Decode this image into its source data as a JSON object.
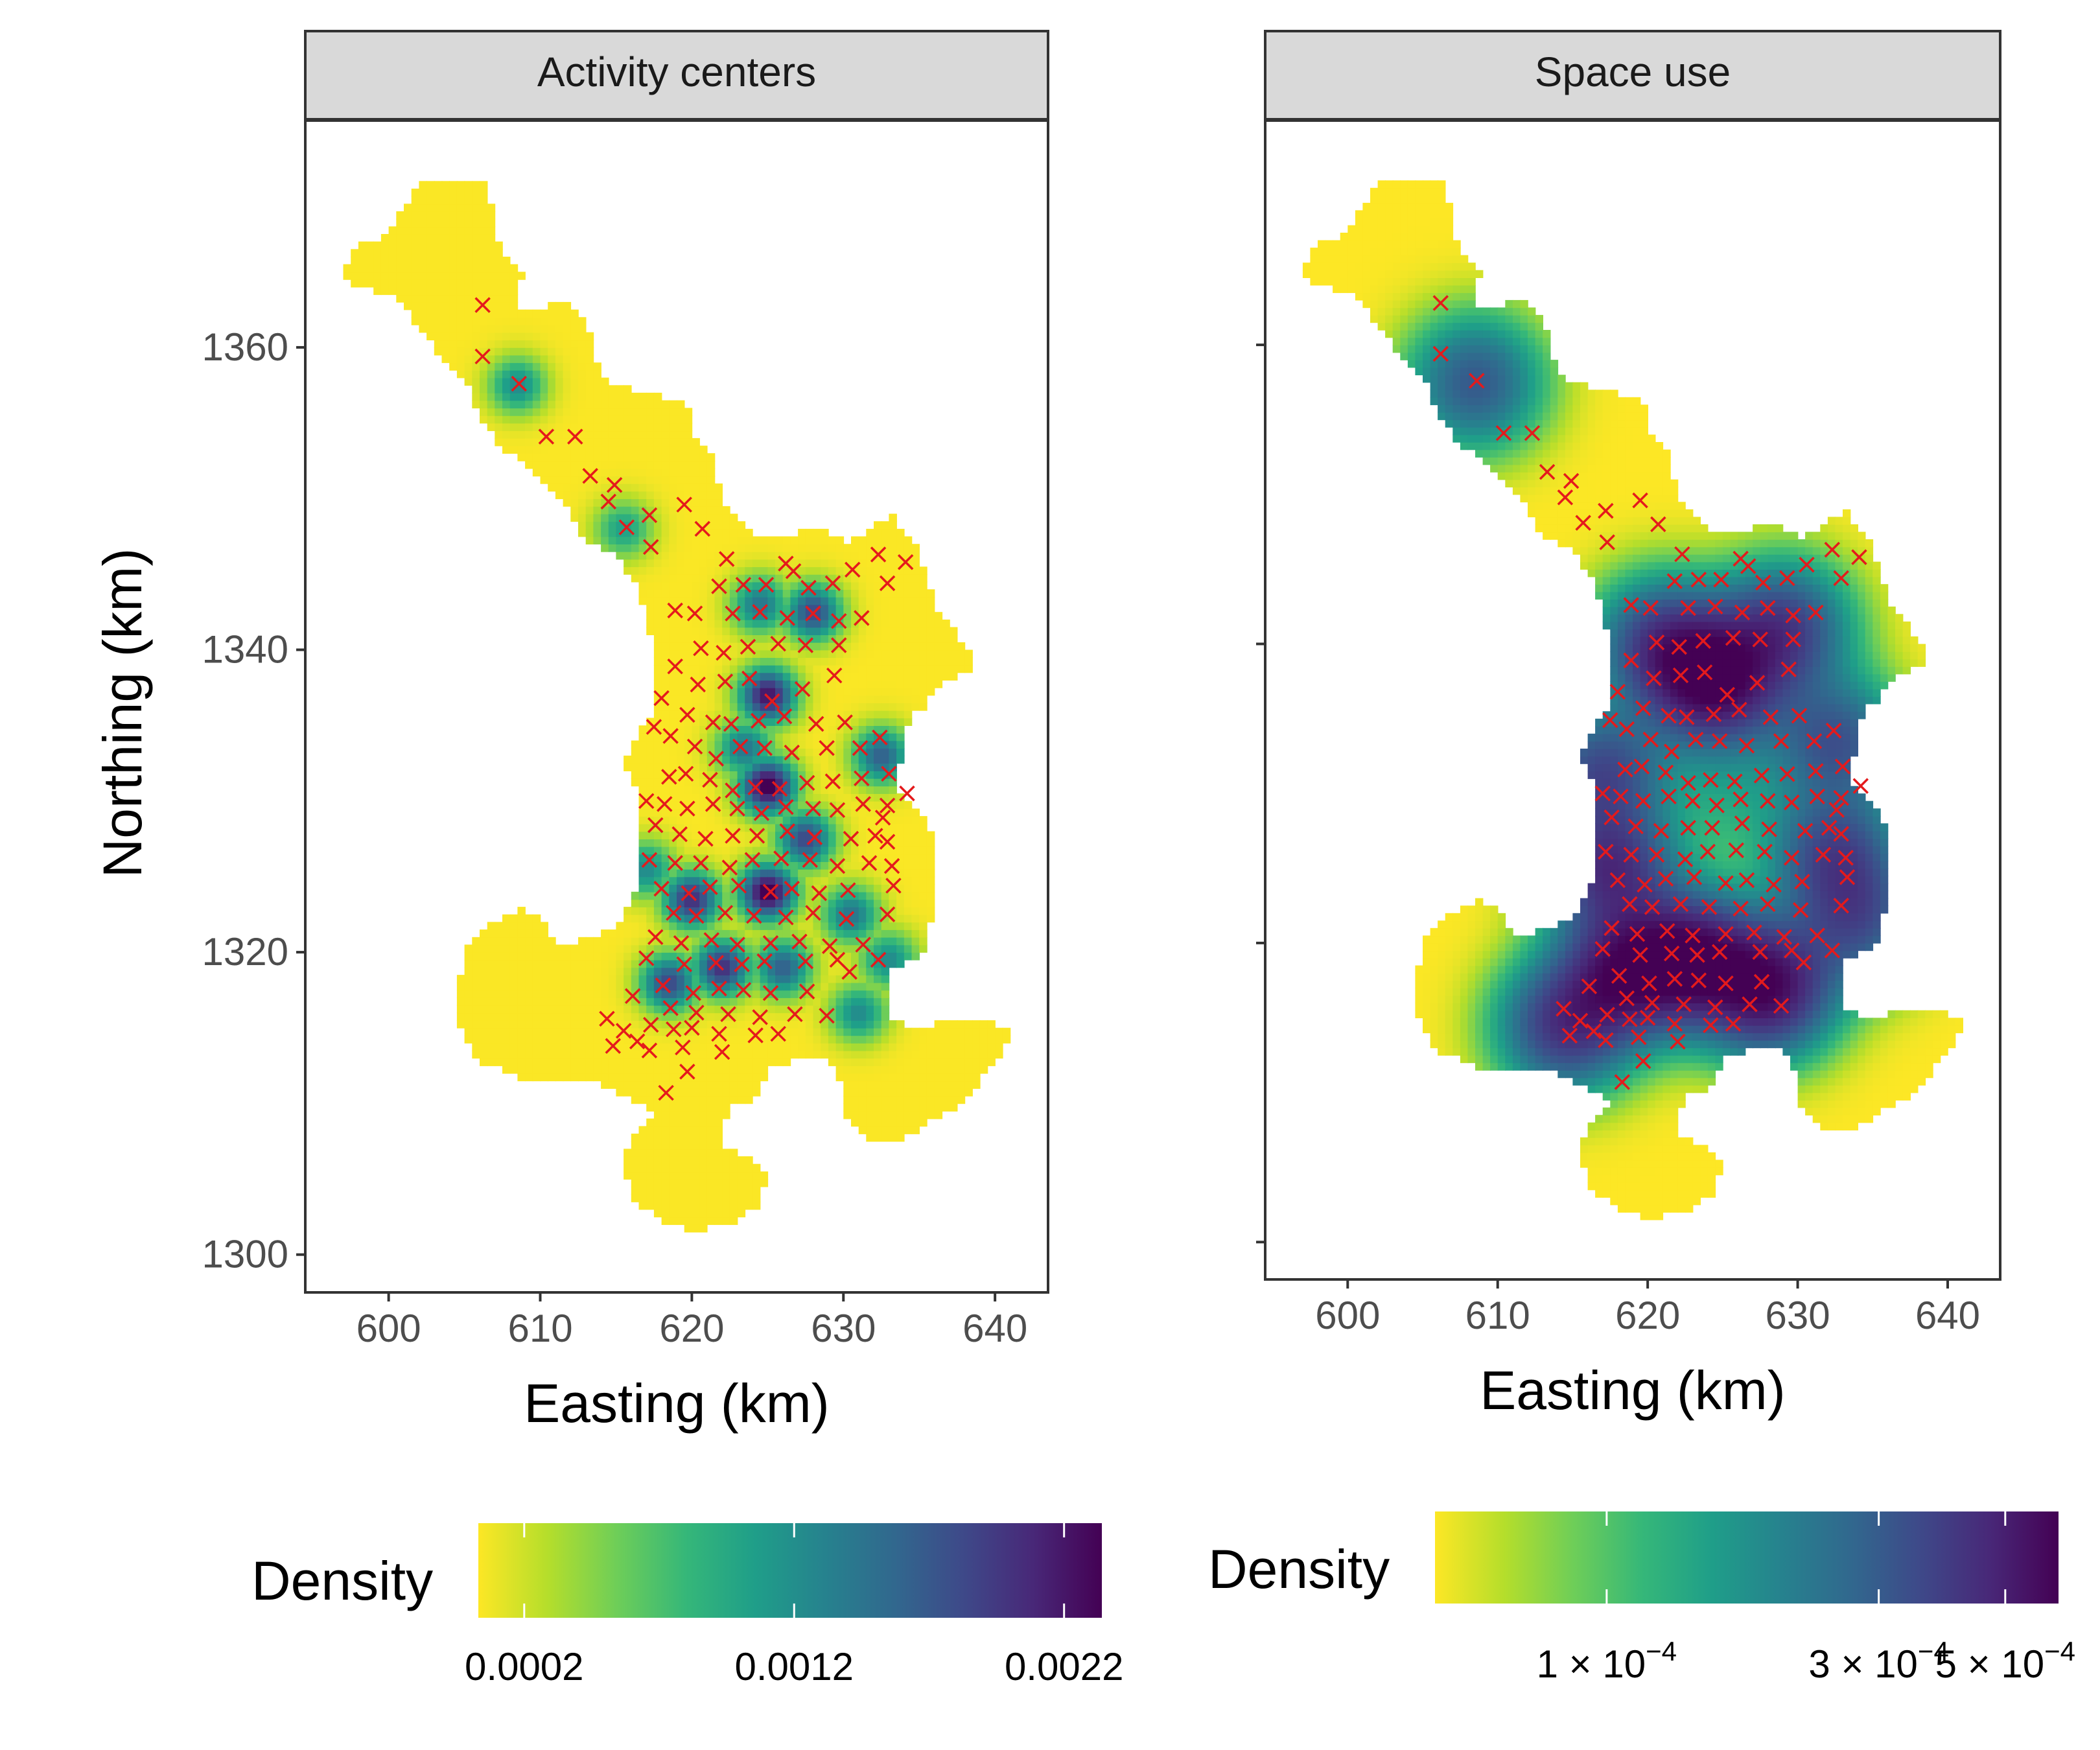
{
  "figure": {
    "type": "faceted raster heatmap with point overlay",
    "ylabel": "Northing (km)"
  },
  "chart_data": [
    {
      "type": "heatmap",
      "title": "Activity centers",
      "xlabel": "Easting (km)",
      "ylabel": "Northing (km)",
      "xlim": [
        594.5,
        643.5
      ],
      "ylim": [
        1297.5,
        1375
      ],
      "x_ticks": [
        600,
        610,
        620,
        630,
        640
      ],
      "y_ticks": [
        1300,
        1320,
        1340,
        1360
      ],
      "x_tick_labels": [
        "600",
        "610",
        "620",
        "630",
        "640"
      ],
      "y_tick_labels": [
        "1300",
        "1320",
        "1340",
        "1360"
      ],
      "legend": {
        "title": "Density",
        "position": "bottom",
        "range": [
          3e-05,
          0.00234
        ],
        "ticks": [
          0.0002,
          0.0012,
          0.0022
        ],
        "tick_labels": [
          "0.0002",
          "0.0012",
          "0.0022"
        ]
      },
      "colors": [
        "#fde725",
        "#b5de2b",
        "#6ece58",
        "#35b779",
        "#1f9e89",
        "#26828e",
        "#31688e",
        "#3e4989",
        "#482878",
        "#440154"
      ],
      "hotspots": [
        [
          608.5,
          1357.5,
          0.0012
        ],
        [
          615.5,
          1348,
          0.001
        ],
        [
          625,
          1337,
          0.0022
        ],
        [
          625,
          1331,
          0.0024
        ],
        [
          628,
          1342.5,
          0.0018
        ],
        [
          624.5,
          1343,
          0.0014
        ],
        [
          625,
          1324,
          0.0024
        ],
        [
          620,
          1323.5,
          0.002
        ],
        [
          618.5,
          1318,
          0.0018
        ],
        [
          622,
          1319,
          0.002
        ],
        [
          626,
          1319,
          0.0016
        ],
        [
          627.5,
          1327.5,
          0.0018
        ],
        [
          632.5,
          1333,
          0.0016
        ],
        [
          630.5,
          1322.5,
          0.0014
        ],
        [
          633,
          1319.5,
          0.0012
        ],
        [
          631,
          1316,
          0.0012
        ],
        [
          623.5,
          1333.5,
          0.0014
        ],
        [
          617,
          1325.5,
          0.0012
        ]
      ]
    },
    {
      "type": "heatmap",
      "title": "Space use",
      "xlabel": "Easting (km)",
      "xlim": [
        594.5,
        643.5
      ],
      "ylim": [
        1297.5,
        1375
      ],
      "x_ticks": [
        600,
        610,
        620,
        630,
        640
      ],
      "y_ticks": [
        1300,
        1320,
        1340,
        1360
      ],
      "x_tick_labels": [
        "600",
        "610",
        "620",
        "630",
        "640"
      ],
      "legend": {
        "title": "Density",
        "position": "bottom",
        "scale": "log",
        "range": [
          5e-05,
          0.00062
        ],
        "ticks": [
          0.0001,
          0.0003,
          0.0005
        ],
        "tick_labels": [
          {
            "mantissa": "1",
            "base": "10",
            "exponent": "−4"
          },
          {
            "mantissa": "3",
            "base": "10",
            "exponent": "−4"
          },
          {
            "mantissa": "5",
            "base": "10",
            "exponent": "−4"
          }
        ]
      },
      "colors": [
        "#fde725",
        "#b5de2b",
        "#6ece58",
        "#35b779",
        "#1f9e89",
        "#26828e",
        "#31688e",
        "#3e4989",
        "#482878",
        "#440154"
      ],
      "hotspots": [
        [
          624.5,
          1337.5,
          0.00062
        ],
        [
          623,
          1319,
          0.00058
        ],
        [
          628,
          1317,
          0.0006
        ],
        [
          618.5,
          1318,
          0.00052
        ],
        [
          617.5,
          1325,
          0.00045
        ],
        [
          614.5,
          1314.5,
          0.00042
        ],
        [
          608.5,
          1357.5,
          0.0003
        ],
        [
          629,
          1341,
          0.0004
        ],
        [
          621,
          1340,
          0.0004
        ],
        [
          617,
          1331.5,
          0.00035
        ],
        [
          632.5,
          1333.5,
          0.00032
        ],
        [
          632.5,
          1326,
          0.00035
        ],
        [
          634,
          1321.5,
          0.0003
        ],
        [
          625.5,
          1330,
          8e-05
        ]
      ]
    }
  ],
  "points": {
    "marker": "x",
    "color": "#e41a1c",
    "xy": [
      [
        606.2,
        1362.8
      ],
      [
        606.2,
        1359.4
      ],
      [
        608.6,
        1357.6
      ],
      [
        610.4,
        1354.1
      ],
      [
        612.3,
        1354.1
      ],
      [
        613.3,
        1351.5
      ],
      [
        614.9,
        1350.9
      ],
      [
        614.5,
        1349.8
      ],
      [
        617.2,
        1348.9
      ],
      [
        619.5,
        1349.6
      ],
      [
        615.7,
        1348.1
      ],
      [
        620.7,
        1348.0
      ],
      [
        617.3,
        1346.8
      ],
      [
        622.3,
        1346.0
      ],
      [
        626.2,
        1345.7
      ],
      [
        626.7,
        1345.2
      ],
      [
        630.6,
        1345.3
      ],
      [
        632.3,
        1346.3
      ],
      [
        634.1,
        1345.8
      ],
      [
        621.8,
        1344.2
      ],
      [
        623.4,
        1344.3
      ],
      [
        624.9,
        1344.3
      ],
      [
        627.7,
        1344.1
      ],
      [
        629.3,
        1344.4
      ],
      [
        632.9,
        1344.4
      ],
      [
        618.9,
        1342.6
      ],
      [
        620.2,
        1342.4
      ],
      [
        622.7,
        1342.4
      ],
      [
        624.5,
        1342.5
      ],
      [
        626.3,
        1342.1
      ],
      [
        628.0,
        1342.4
      ],
      [
        629.7,
        1341.9
      ],
      [
        631.2,
        1342.1
      ],
      [
        620.6,
        1340.1
      ],
      [
        622.1,
        1339.8
      ],
      [
        623.7,
        1340.2
      ],
      [
        625.7,
        1340.4
      ],
      [
        627.5,
        1340.3
      ],
      [
        629.7,
        1340.3
      ],
      [
        618.9,
        1338.9
      ],
      [
        620.4,
        1337.7
      ],
      [
        622.2,
        1337.9
      ],
      [
        623.8,
        1338.1
      ],
      [
        625.3,
        1336.6
      ],
      [
        627.3,
        1337.4
      ],
      [
        629.4,
        1338.3
      ],
      [
        618.0,
        1336.8
      ],
      [
        619.7,
        1335.7
      ],
      [
        621.4,
        1335.2
      ],
      [
        622.6,
        1335.1
      ],
      [
        624.4,
        1335.3
      ],
      [
        626.1,
        1335.6
      ],
      [
        628.2,
        1335.1
      ],
      [
        630.1,
        1335.2
      ],
      [
        617.5,
        1334.9
      ],
      [
        618.6,
        1334.3
      ],
      [
        620.2,
        1333.6
      ],
      [
        621.6,
        1332.8
      ],
      [
        623.2,
        1333.6
      ],
      [
        624.8,
        1333.5
      ],
      [
        626.6,
        1333.2
      ],
      [
        628.9,
        1333.5
      ],
      [
        631.1,
        1333.5
      ],
      [
        632.4,
        1334.2
      ],
      [
        618.5,
        1331.6
      ],
      [
        619.6,
        1331.8
      ],
      [
        621.2,
        1331.4
      ],
      [
        622.7,
        1330.7
      ],
      [
        624.2,
        1330.9
      ],
      [
        625.8,
        1330.8
      ],
      [
        627.6,
        1331.2
      ],
      [
        629.3,
        1331.3
      ],
      [
        631.2,
        1331.5
      ],
      [
        633.0,
        1331.8
      ],
      [
        617.0,
        1330.0
      ],
      [
        618.2,
        1329.8
      ],
      [
        619.7,
        1329.5
      ],
      [
        621.4,
        1329.8
      ],
      [
        623.0,
        1329.5
      ],
      [
        624.6,
        1329.2
      ],
      [
        626.2,
        1329.6
      ],
      [
        628.0,
        1329.5
      ],
      [
        629.6,
        1329.4
      ],
      [
        631.3,
        1329.8
      ],
      [
        632.9,
        1329.7
      ],
      [
        634.2,
        1330.5
      ],
      [
        617.6,
        1328.4
      ],
      [
        619.2,
        1327.8
      ],
      [
        620.9,
        1327.5
      ],
      [
        622.7,
        1327.7
      ],
      [
        624.3,
        1327.7
      ],
      [
        626.3,
        1328.0
      ],
      [
        628.1,
        1327.6
      ],
      [
        630.5,
        1327.5
      ],
      [
        632.1,
        1327.7
      ],
      [
        617.2,
        1326.1
      ],
      [
        618.9,
        1325.9
      ],
      [
        620.6,
        1325.9
      ],
      [
        622.5,
        1325.6
      ],
      [
        624.0,
        1326.1
      ],
      [
        625.9,
        1326.2
      ],
      [
        627.8,
        1326.1
      ],
      [
        629.6,
        1325.7
      ],
      [
        631.7,
        1325.9
      ],
      [
        633.2,
        1325.7
      ],
      [
        618.0,
        1324.2
      ],
      [
        619.8,
        1323.9
      ],
      [
        621.2,
        1324.3
      ],
      [
        623.1,
        1324.4
      ],
      [
        625.2,
        1324.0
      ],
      [
        626.6,
        1324.2
      ],
      [
        628.4,
        1323.9
      ],
      [
        630.3,
        1324.1
      ],
      [
        633.3,
        1324.4
      ],
      [
        618.8,
        1322.6
      ],
      [
        620.3,
        1322.4
      ],
      [
        622.2,
        1322.6
      ],
      [
        624.1,
        1322.4
      ],
      [
        626.2,
        1322.3
      ],
      [
        628.0,
        1322.6
      ],
      [
        630.2,
        1322.2
      ],
      [
        632.9,
        1322.5
      ],
      [
        617.6,
        1321.0
      ],
      [
        619.3,
        1320.6
      ],
      [
        621.3,
        1320.8
      ],
      [
        623.0,
        1320.5
      ],
      [
        625.2,
        1320.6
      ],
      [
        627.1,
        1320.7
      ],
      [
        629.1,
        1320.4
      ],
      [
        631.3,
        1320.5
      ],
      [
        617.0,
        1319.6
      ],
      [
        619.5,
        1319.2
      ],
      [
        621.6,
        1319.3
      ],
      [
        623.3,
        1319.2
      ],
      [
        624.8,
        1319.4
      ],
      [
        627.5,
        1319.4
      ],
      [
        629.6,
        1319.5
      ],
      [
        632.3,
        1319.5
      ],
      [
        618.1,
        1317.8
      ],
      [
        620.1,
        1317.3
      ],
      [
        621.8,
        1317.6
      ],
      [
        623.4,
        1317.5
      ],
      [
        625.2,
        1317.3
      ],
      [
        627.6,
        1317.4
      ],
      [
        616.1,
        1317.1
      ],
      [
        618.6,
        1316.3
      ],
      [
        620.3,
        1316.0
      ],
      [
        622.4,
        1315.9
      ],
      [
        624.5,
        1315.7
      ],
      [
        626.8,
        1315.9
      ],
      [
        628.9,
        1315.8
      ],
      [
        614.4,
        1315.6
      ],
      [
        615.5,
        1314.8
      ],
      [
        617.3,
        1315.2
      ],
      [
        618.8,
        1314.9
      ],
      [
        620.0,
        1315.0
      ],
      [
        621.8,
        1314.6
      ],
      [
        624.2,
        1314.5
      ],
      [
        625.7,
        1314.6
      ],
      [
        614.8,
        1313.8
      ],
      [
        616.4,
        1314.1
      ],
      [
        617.2,
        1313.5
      ],
      [
        619.4,
        1313.7
      ],
      [
        622.0,
        1313.4
      ],
      [
        619.7,
        1312.1
      ],
      [
        618.3,
        1310.7
      ],
      [
        630.4,
        1318.7
      ],
      [
        632.6,
        1328.9
      ],
      [
        632.9,
        1327.3
      ]
    ]
  }
}
